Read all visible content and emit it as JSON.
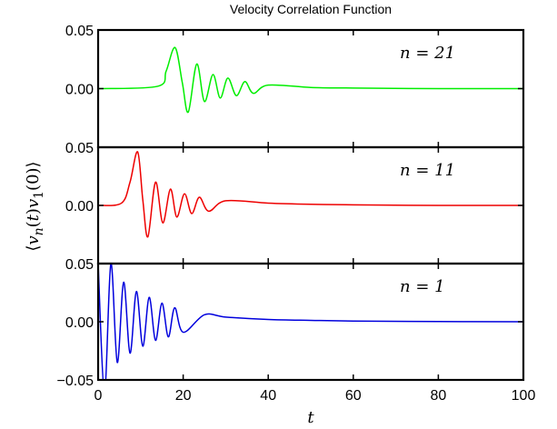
{
  "chart_data": {
    "type": "line",
    "title": "Velocity Correlation Function",
    "xlabel": "t",
    "ylabel": "⟨v_n(t)v_1(0)⟩",
    "xlim": [
      0,
      100
    ],
    "x_ticks": [
      "0",
      "20",
      "40",
      "60",
      "80",
      "100"
    ],
    "grid": false,
    "panels": [
      {
        "label": "n = 21",
        "color": "#00ee00",
        "ylim": [
          -0.05,
          0.05
        ],
        "y_ticks": [
          "0.05",
          "0.00"
        ],
        "x": [
          0,
          14,
          16,
          18.1,
          19.8,
          21.2,
          23.2,
          25,
          27,
          28.7,
          30.5,
          32.5,
          34.5,
          36.5,
          40,
          50,
          60,
          80,
          100
        ],
        "y": [
          0,
          0.002,
          0.015,
          0.035,
          0.005,
          -0.02,
          0.021,
          -0.011,
          0.012,
          -0.008,
          0.009,
          -0.006,
          0.006,
          -0.004,
          0.003,
          0.001,
          0.0005,
          0,
          0
        ]
      },
      {
        "label": "n = 11",
        "color": "#ee0000",
        "ylim": [
          -0.05,
          0.05
        ],
        "y_ticks": [
          "0.05",
          "0.00"
        ],
        "x": [
          0,
          5.5,
          7.5,
          9.3,
          10.5,
          11.7,
          13.5,
          15.2,
          17,
          18.5,
          20.3,
          22,
          23.8,
          26,
          30,
          40,
          50,
          60,
          80,
          100
        ],
        "y": [
          0,
          0.002,
          0.02,
          0.046,
          0.005,
          -0.027,
          0.02,
          -0.015,
          0.014,
          -0.01,
          0.01,
          -0.007,
          0.007,
          -0.005,
          0.004,
          0.002,
          0.001,
          0.0005,
          0,
          0
        ]
      },
      {
        "label": "n =  1",
        "color": "#0000dd",
        "ylim": [
          -0.05,
          0.05
        ],
        "y_ticks": [
          "0.05",
          "0.00",
          "−0.05"
        ],
        "x": [
          0,
          1.5,
          3,
          4.5,
          6,
          7.5,
          9,
          10.5,
          12,
          13.5,
          15,
          16.5,
          18,
          20,
          25,
          30,
          40,
          50,
          60,
          80,
          100
        ],
        "y": [
          0.05,
          -0.06,
          0.05,
          -0.035,
          0.034,
          -0.027,
          0.026,
          -0.021,
          0.021,
          -0.016,
          0.016,
          -0.013,
          0.012,
          -0.009,
          0.006,
          0.004,
          0.002,
          0.0012,
          0.0006,
          0.0002,
          0
        ]
      }
    ]
  }
}
